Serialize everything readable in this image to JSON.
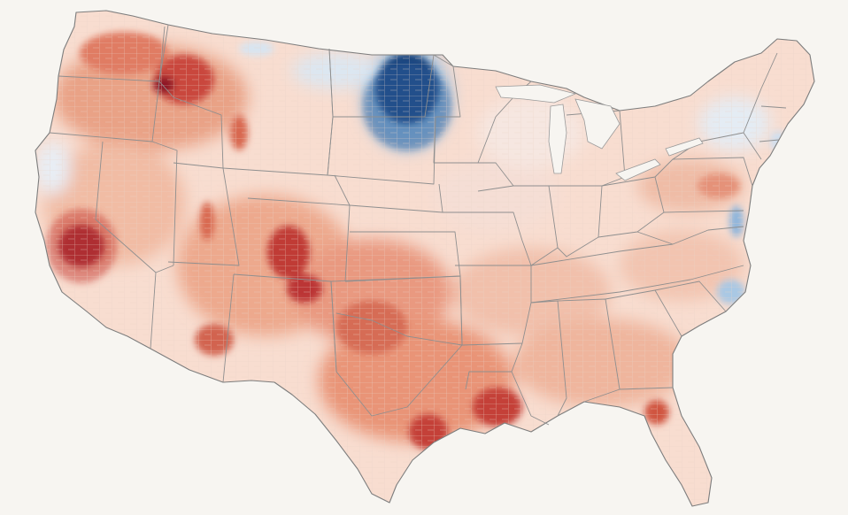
{
  "map": {
    "type": "choropleth",
    "region": "contiguous-united-states",
    "unit": "county",
    "background_color": "#f7f5f1",
    "land_base_color": "#f8ddd0",
    "county_line_color": "#e8cfc3",
    "state_line_color": "#8f8f8f",
    "color_scale": {
      "diverging": true,
      "negative": [
        "#eaf1f8",
        "#bcd5ea",
        "#6c9fcd",
        "#2b5f9e",
        "#143f78"
      ],
      "neutral": "#f6efec",
      "positive": [
        "#f8dccd",
        "#f0b49b",
        "#e48669",
        "#c9463c",
        "#8e1526"
      ]
    },
    "hotspots": [
      {
        "id": "california-central-valley",
        "polarity": "positive",
        "level": 5
      },
      {
        "id": "snake-river-plain",
        "polarity": "positive",
        "level": 4
      },
      {
        "id": "colorado-mountains",
        "polarity": "positive",
        "level": 4
      },
      {
        "id": "southern-colorado",
        "polarity": "positive",
        "level": 4
      },
      {
        "id": "houston-area",
        "polarity": "positive",
        "level": 4
      },
      {
        "id": "southern-louisiana",
        "polarity": "positive",
        "level": 4
      },
      {
        "id": "texas-panhandle-oklahoma",
        "polarity": "positive",
        "level": 3
      },
      {
        "id": "central-florida",
        "polarity": "positive",
        "level": 3
      },
      {
        "id": "eastern-washington",
        "polarity": "positive",
        "level": 3
      },
      {
        "id": "southern-arizona",
        "polarity": "positive",
        "level": 3
      },
      {
        "id": "pennsylvania",
        "polarity": "positive",
        "level": 2
      },
      {
        "id": "north-dakota",
        "polarity": "negative",
        "level": 5
      },
      {
        "id": "northern-montana",
        "polarity": "negative",
        "level": 1
      },
      {
        "id": "chesapeake-bay",
        "polarity": "negative",
        "level": 2
      },
      {
        "id": "eastern-north-carolina",
        "polarity": "negative",
        "level": 2
      },
      {
        "id": "new-england",
        "polarity": "negative",
        "level": 1
      },
      {
        "id": "northern-california-coast",
        "polarity": "negative",
        "level": 1
      }
    ]
  }
}
